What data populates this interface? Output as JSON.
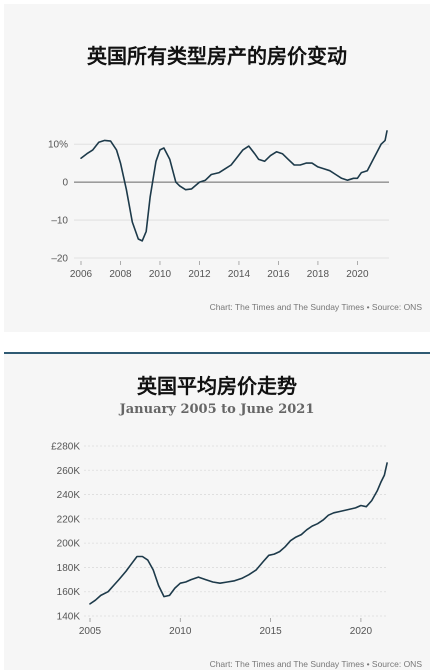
{
  "chart_data": [
    {
      "type": "line",
      "title": "英国所有类型房产的房价变动",
      "source": "Chart: The Times and The Sunday Times • Source: ONS",
      "xlim": [
        2006,
        2021.6
      ],
      "ylim": [
        -20,
        14
      ],
      "x_ticks": [
        2006,
        2008,
        2010,
        2012,
        2014,
        2016,
        2018,
        2020
      ],
      "x_tick_labels": [
        "2006",
        "2008",
        "2010",
        "2012",
        "2014",
        "2016",
        "2018",
        "2020"
      ],
      "y_ticks": [
        10,
        0,
        -10,
        -20
      ],
      "y_tick_labels": [
        "10%",
        "0",
        "–10",
        "–20"
      ],
      "zero_line": true,
      "color": "#1d3a4a",
      "series": [
        {
          "x": [
            2006.0,
            2006.3,
            2006.6,
            2006.9,
            2007.2,
            2007.5,
            2007.8,
            2008.0,
            2008.3,
            2008.6,
            2008.9,
            2009.1,
            2009.3,
            2009.5,
            2009.8,
            2010.0,
            2010.2,
            2010.5,
            2010.8,
            2011.0,
            2011.3,
            2011.6,
            2012.0,
            2012.3,
            2012.6,
            2013.0,
            2013.3,
            2013.6,
            2013.9,
            2014.2,
            2014.5,
            2014.8,
            2015.0,
            2015.3,
            2015.6,
            2015.9,
            2016.2,
            2016.5,
            2016.8,
            2017.1,
            2017.4,
            2017.7,
            2018.0,
            2018.3,
            2018.6,
            2018.9,
            2019.2,
            2019.5,
            2019.8,
            2020.0,
            2020.2,
            2020.5,
            2020.8,
            2021.0,
            2021.2,
            2021.4,
            2021.5
          ],
          "y": [
            6.3,
            7.5,
            8.5,
            10.5,
            11.0,
            10.8,
            8.5,
            5.0,
            -2.0,
            -10.5,
            -15.0,
            -15.5,
            -13.0,
            -4.0,
            5.5,
            8.5,
            9.0,
            6.0,
            0.0,
            -1.0,
            -2.0,
            -1.8,
            0.0,
            0.5,
            2.0,
            2.5,
            3.5,
            4.5,
            6.5,
            8.5,
            9.5,
            7.5,
            6.0,
            5.5,
            7.0,
            8.0,
            7.5,
            6.0,
            4.5,
            4.5,
            5.0,
            5.0,
            4.0,
            3.5,
            3.0,
            2.0,
            1.0,
            0.5,
            1.0,
            1.0,
            2.5,
            3.0,
            6.0,
            8.0,
            10.0,
            11.0,
            13.5
          ]
        }
      ]
    },
    {
      "type": "line",
      "title": "英国平均房价走势",
      "subtitle": "January 2005 to June 2021",
      "source": "Chart: The Times and The Sunday Times • Source: ONS",
      "xlim": [
        2005,
        2021.5
      ],
      "ylim": [
        140000,
        280000
      ],
      "x_ticks": [
        2005,
        2010,
        2015,
        2020
      ],
      "x_tick_labels": [
        "2005",
        "2010",
        "2015",
        "2020"
      ],
      "y_ticks": [
        280000,
        260000,
        240000,
        220000,
        200000,
        180000,
        160000,
        140000
      ],
      "y_tick_labels": [
        "£280K",
        "260K",
        "240K",
        "220K",
        "200K",
        "180K",
        "160K",
        "140K"
      ],
      "color": "#1d3a4a",
      "series": [
        {
          "x": [
            2005.0,
            2005.3,
            2005.6,
            2006.0,
            2006.3,
            2006.6,
            2007.0,
            2007.3,
            2007.6,
            2007.9,
            2008.2,
            2008.5,
            2008.8,
            2009.1,
            2009.4,
            2009.7,
            2010.0,
            2010.3,
            2010.6,
            2011.0,
            2011.4,
            2011.8,
            2012.2,
            2012.6,
            2013.0,
            2013.4,
            2013.8,
            2014.2,
            2014.6,
            2014.9,
            2015.2,
            2015.5,
            2015.8,
            2016.1,
            2016.4,
            2016.7,
            2017.0,
            2017.3,
            2017.6,
            2017.9,
            2018.2,
            2018.5,
            2018.8,
            2019.1,
            2019.4,
            2019.7,
            2020.0,
            2020.3,
            2020.6,
            2020.9,
            2021.1,
            2021.3,
            2021.45
          ],
          "y": [
            150000,
            153000,
            157000,
            160000,
            165000,
            170000,
            177000,
            183000,
            189000,
            189000,
            186000,
            178000,
            165000,
            156000,
            157000,
            163000,
            167000,
            168000,
            170000,
            172000,
            170000,
            168000,
            167000,
            168000,
            169000,
            171000,
            174000,
            178000,
            185000,
            190000,
            191000,
            193000,
            197000,
            202000,
            205000,
            207000,
            211000,
            214000,
            216000,
            219000,
            223000,
            225000,
            226000,
            227000,
            228000,
            229000,
            231000,
            230000,
            235000,
            243000,
            250000,
            256000,
            266000
          ]
        }
      ]
    }
  ]
}
